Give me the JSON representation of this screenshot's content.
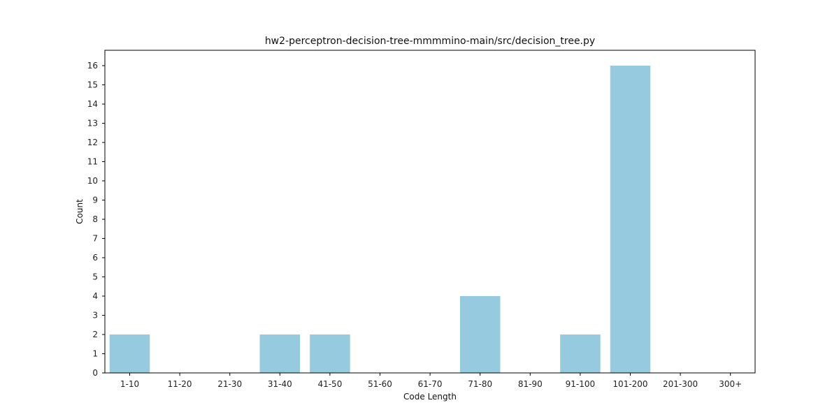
{
  "chart_data": {
    "type": "bar",
    "title": "hw2-perceptron-decision-tree-mmmmino-main/src/decision_tree.py",
    "xlabel": "Code Length",
    "ylabel": "Count",
    "categories": [
      "1-10",
      "11-20",
      "21-30",
      "31-40",
      "41-50",
      "51-60",
      "61-70",
      "71-80",
      "81-90",
      "91-100",
      "101-200",
      "201-300",
      "300+"
    ],
    "values": [
      2,
      0,
      0,
      2,
      2,
      0,
      0,
      4,
      0,
      2,
      16,
      0,
      0
    ],
    "ylim": [
      0,
      16.8
    ],
    "yticks": [
      0,
      1,
      2,
      3,
      4,
      5,
      6,
      7,
      8,
      9,
      10,
      11,
      12,
      13,
      14,
      15,
      16
    ],
    "bar_color": "#96cadf",
    "grid": false,
    "legend": "none"
  }
}
